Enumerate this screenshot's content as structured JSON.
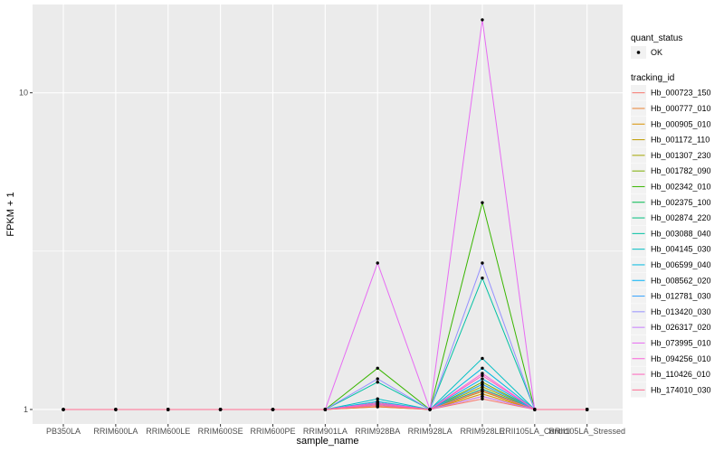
{
  "chart_data": {
    "type": "line",
    "xlabel": "sample_name",
    "ylabel": "FPKM + 1",
    "y_scale": "log10",
    "ylim": [
      0.9,
      19
    ],
    "y_ticks": [
      {
        "value": 1,
        "label": "1"
      },
      {
        "value": 10,
        "label": "10"
      }
    ],
    "grid": true,
    "legend_position": "right",
    "categories": [
      "PB350LA",
      "RRIM600LA",
      "RRIM600LE",
      "RRIM600SE",
      "RRIM600PE",
      "RRIM901LA",
      "RRIM928BA",
      "RRIM928LA",
      "RRIM928LE",
      "RRII105LA_Control",
      "RRII105LA_Stressed"
    ],
    "quant_status": {
      "title": "quant_status",
      "entries": [
        {
          "label": "OK",
          "color": "#000000"
        }
      ]
    },
    "tracking_legend_title": "tracking_id",
    "series": [
      {
        "name": "Hb_000723_150",
        "color": "#F8766D",
        "values": [
          1,
          1,
          1,
          1,
          1,
          1,
          1.02,
          1,
          1.08,
          1,
          1
        ]
      },
      {
        "name": "Hb_000777_010",
        "color": "#EA8331",
        "values": [
          1,
          1,
          1,
          1,
          1,
          1,
          1.02,
          1,
          1.1,
          1,
          1
        ]
      },
      {
        "name": "Hb_000905_010",
        "color": "#D89000",
        "values": [
          1,
          1,
          1,
          1,
          1,
          1,
          1.03,
          1,
          1.12,
          1,
          1
        ]
      },
      {
        "name": "Hb_001172_110",
        "color": "#C09B00",
        "values": [
          1,
          1,
          1,
          1,
          1,
          1,
          1.03,
          1,
          1.14,
          1,
          1
        ]
      },
      {
        "name": "Hb_001307_230",
        "color": "#A3A500",
        "values": [
          1,
          1,
          1,
          1,
          1,
          1,
          1.04,
          1,
          1.18,
          1,
          1
        ]
      },
      {
        "name": "Hb_001782_090",
        "color": "#7CAE00",
        "values": [
          1,
          1,
          1,
          1,
          1,
          1,
          1.05,
          1,
          1.22,
          1,
          1
        ]
      },
      {
        "name": "Hb_002342_010",
        "color": "#39B600",
        "values": [
          1,
          1,
          1,
          1,
          1,
          1,
          1.35,
          1,
          4.5,
          1,
          1
        ]
      },
      {
        "name": "Hb_002375_100",
        "color": "#00BB4E",
        "values": [
          1,
          1,
          1,
          1,
          1,
          1,
          1.05,
          1,
          1.2,
          1,
          1
        ]
      },
      {
        "name": "Hb_002874_220",
        "color": "#00BF7D",
        "values": [
          1,
          1,
          1,
          1,
          1,
          1,
          1.04,
          1,
          1.16,
          1,
          1
        ]
      },
      {
        "name": "Hb_003088_040",
        "color": "#00C1A3",
        "values": [
          1,
          1,
          1,
          1,
          1,
          1,
          1.22,
          1,
          2.6,
          1,
          1
        ]
      },
      {
        "name": "Hb_004145_030",
        "color": "#00BFC4",
        "values": [
          1,
          1,
          1,
          1,
          1,
          1,
          1.08,
          1,
          1.45,
          1,
          1
        ]
      },
      {
        "name": "Hb_006599_040",
        "color": "#00BAE0",
        "values": [
          1,
          1,
          1,
          1,
          1,
          1,
          1.06,
          1,
          1.35,
          1,
          1
        ]
      },
      {
        "name": "Hb_008562_020",
        "color": "#00B0F6",
        "values": [
          1,
          1,
          1,
          1,
          1,
          1,
          1.04,
          1,
          1.25,
          1,
          1
        ]
      },
      {
        "name": "Hb_012781_030",
        "color": "#35A2FF",
        "values": [
          1,
          1,
          1,
          1,
          1,
          1,
          1.04,
          1,
          1.2,
          1,
          1
        ]
      },
      {
        "name": "Hb_013420_030",
        "color": "#9590FF",
        "values": [
          1,
          1,
          1,
          1,
          1,
          1,
          1.25,
          1,
          2.9,
          1,
          1
        ]
      },
      {
        "name": "Hb_026317_020",
        "color": "#C77CFF",
        "values": [
          1,
          1,
          1,
          1,
          1,
          1,
          1.03,
          1,
          1.1,
          1,
          1
        ]
      },
      {
        "name": "Hb_073995_010",
        "color": "#E76BF3",
        "values": [
          1,
          1,
          1,
          1,
          1,
          1,
          2.9,
          1,
          17,
          1,
          1
        ]
      },
      {
        "name": "Hb_094256_010",
        "color": "#FA62DB",
        "values": [
          1,
          1,
          1,
          1,
          1,
          1,
          1.05,
          1,
          1.3,
          1,
          1
        ]
      },
      {
        "name": "Hb_110426_010",
        "color": "#FF62BC",
        "values": [
          1,
          1,
          1,
          1,
          1,
          1,
          1.04,
          1,
          1.28,
          1,
          1
        ]
      },
      {
        "name": "Hb_174010_030",
        "color": "#FF6C91",
        "values": [
          1,
          1,
          1,
          1,
          1,
          1,
          1.03,
          1,
          1.15,
          1,
          1
        ]
      }
    ]
  }
}
